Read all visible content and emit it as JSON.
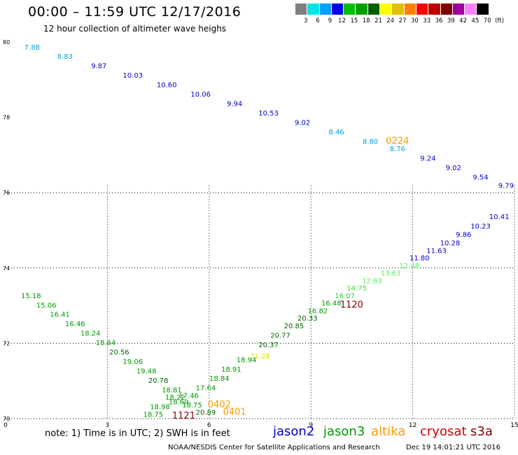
{
  "header": {
    "title": "00:00 – 11:59 UTC 12/17/2016",
    "subtitle": "12 hour collection of altimeter wave heighs"
  },
  "colorbar": {
    "colors": [
      "#808080",
      "#00e5e5",
      "#00a0ff",
      "#0000e0",
      "#00c000",
      "#00a000",
      "#006000",
      "#ffff00",
      "#e0c000",
      "#ff8000",
      "#ff0000",
      "#c00000",
      "#800000",
      "#a000a0",
      "#ff80ff",
      "#000000"
    ],
    "labels": [
      "3",
      "6",
      "9",
      "12",
      "15",
      "18",
      "21",
      "24",
      "27",
      "30",
      "33",
      "36",
      "39",
      "42",
      "45",
      "70",
      "(ft)"
    ]
  },
  "footer": {
    "note": "note: 1) Time is in UTC; 2) SWH is in feet",
    "satellites": [
      {
        "name": "jason2",
        "color": "#0000cc"
      },
      {
        "name": "jason3",
        "color": "#009900"
      },
      {
        "name": "altika",
        "color": "#ff9900"
      },
      {
        "name": "cryosat",
        "color": "#cc0000"
      },
      {
        "name": "s3a",
        "color": "#800000"
      }
    ],
    "credit": "NOAA/NESDIS Center for Satellite Applications and Research",
    "timestamp": "Dec 19 14:01:21 UTC 2016"
  },
  "chart_data": {
    "type": "scatter",
    "xlim": [
      0,
      15
    ],
    "ylim": [
      70,
      80
    ],
    "xticks": [
      "0",
      "3",
      "6",
      "9",
      "12",
      "15"
    ],
    "yticks": [
      "70",
      "72",
      "74",
      "76",
      "78",
      "80"
    ],
    "grid": true,
    "tracks": [
      {
        "name": "jason2 (upper)",
        "points": [
          {
            "x": 0.78,
            "y": 79.8,
            "v": "7.88",
            "c": "#00a0e0"
          },
          {
            "x": 1.75,
            "y": 79.55,
            "v": "8.83",
            "c": "#00a0e0"
          },
          {
            "x": 2.75,
            "y": 79.3,
            "v": "9.87",
            "c": "#0000cc"
          },
          {
            "x": 3.75,
            "y": 79.05,
            "v": "10.03",
            "c": "#0000cc"
          },
          {
            "x": 4.75,
            "y": 78.8,
            "v": "10.60",
            "c": "#0000cc"
          },
          {
            "x": 5.75,
            "y": 78.55,
            "v": "10.06",
            "c": "#0000cc"
          },
          {
            "x": 6.75,
            "y": 78.3,
            "v": "9.94",
            "c": "#0000cc"
          },
          {
            "x": 7.75,
            "y": 78.05,
            "v": "10.53",
            "c": "#0000cc"
          },
          {
            "x": 8.75,
            "y": 77.8,
            "v": "9.02",
            "c": "#0000cc"
          },
          {
            "x": 9.75,
            "y": 77.55,
            "v": "8.46",
            "c": "#00a0e0"
          },
          {
            "x": 10.75,
            "y": 77.3,
            "v": "8.80",
            "c": "#00a0e0"
          },
          {
            "x": 11.55,
            "y": 77.1,
            "v": "8.76",
            "c": "#00a0e0"
          },
          {
            "x": 12.45,
            "y": 76.85,
            "v": "9.24",
            "c": "#0000cc"
          },
          {
            "x": 13.2,
            "y": 76.6,
            "v": "9.02",
            "c": "#0000cc"
          },
          {
            "x": 14.0,
            "y": 76.35,
            "v": "9.54",
            "c": "#0000cc"
          },
          {
            "x": 14.75,
            "y": 76.12,
            "v": "9.79",
            "c": "#0000cc"
          }
        ]
      },
      {
        "name": "jason3 (lower)",
        "points": [
          {
            "x": 0.75,
            "y": 73.2,
            "v": "15.18",
            "c": "#009900"
          },
          {
            "x": 1.2,
            "y": 72.95,
            "v": "15.06",
            "c": "#009900"
          },
          {
            "x": 1.6,
            "y": 72.7,
            "v": "16.41",
            "c": "#009900"
          },
          {
            "x": 2.05,
            "y": 72.45,
            "v": "16.46",
            "c": "#009900"
          },
          {
            "x": 2.5,
            "y": 72.2,
            "v": "18.24",
            "c": "#009900"
          },
          {
            "x": 2.95,
            "y": 71.95,
            "v": "18.64",
            "c": "#009900"
          },
          {
            "x": 3.35,
            "y": 71.7,
            "v": "20.56",
            "c": "#006600"
          },
          {
            "x": 3.75,
            "y": 71.45,
            "v": "19.06",
            "c": "#009900"
          },
          {
            "x": 4.15,
            "y": 71.2,
            "v": "19.48",
            "c": "#009900"
          },
          {
            "x": 4.5,
            "y": 70.95,
            "v": "20.78",
            "c": "#006600"
          },
          {
            "x": 4.9,
            "y": 70.7,
            "v": "18.81",
            "c": "#009900"
          },
          {
            "x": 5.0,
            "y": 70.5,
            "v": "18.22",
            "c": "#009900"
          },
          {
            "x": 5.4,
            "y": 70.55,
            "v": "17.46",
            "c": "#009900"
          },
          {
            "x": 5.1,
            "y": 70.38,
            "v": "18.69",
            "c": "#009900"
          },
          {
            "x": 4.55,
            "y": 70.25,
            "v": "18.98",
            "c": "#009900"
          },
          {
            "x": 4.35,
            "y": 70.05,
            "v": "18.75",
            "c": "#009900"
          },
          {
            "x": 5.5,
            "y": 70.3,
            "v": "18.75",
            "c": "#009900"
          },
          {
            "x": 5.9,
            "y": 70.1,
            "v": "20.89",
            "c": "#006600"
          },
          {
            "x": 5.9,
            "y": 70.75,
            "v": "17.64",
            "c": "#009900"
          },
          {
            "x": 6.3,
            "y": 71.0,
            "v": "18.84",
            "c": "#009900"
          },
          {
            "x": 6.65,
            "y": 71.25,
            "v": "18.91",
            "c": "#009900"
          },
          {
            "x": 7.1,
            "y": 71.5,
            "v": "18.94",
            "c": "#009900"
          },
          {
            "x": 7.5,
            "y": 71.6,
            "v": "21.28",
            "c": "#e0e000"
          },
          {
            "x": 7.75,
            "y": 71.9,
            "v": "20.37",
            "c": "#006600"
          },
          {
            "x": 8.1,
            "y": 72.15,
            "v": "20.77",
            "c": "#006600"
          },
          {
            "x": 8.5,
            "y": 72.4,
            "v": "20.85",
            "c": "#006600"
          },
          {
            "x": 8.9,
            "y": 72.6,
            "v": "20.33",
            "c": "#006600"
          },
          {
            "x": 9.2,
            "y": 72.8,
            "v": "16.82",
            "c": "#009900"
          },
          {
            "x": 9.6,
            "y": 73.0,
            "v": "16.48",
            "c": "#009900"
          },
          {
            "x": 10.0,
            "y": 73.2,
            "v": "16.07",
            "c": "#33cc33"
          },
          {
            "x": 10.35,
            "y": 73.4,
            "v": "14.75",
            "c": "#33dd33"
          },
          {
            "x": 10.8,
            "y": 73.6,
            "v": "12.83",
            "c": "#55ee55"
          },
          {
            "x": 11.35,
            "y": 73.8,
            "v": "13.63",
            "c": "#55ee55"
          },
          {
            "x": 11.9,
            "y": 74.0,
            "v": "12.48",
            "c": "#55ee55"
          },
          {
            "x": 12.2,
            "y": 74.2,
            "v": "11.80",
            "c": "#0000cc"
          },
          {
            "x": 12.7,
            "y": 74.4,
            "v": "11.63",
            "c": "#0000cc"
          },
          {
            "x": 13.1,
            "y": 74.6,
            "v": "10.28",
            "c": "#0000cc"
          },
          {
            "x": 13.5,
            "y": 74.82,
            "v": "9.86",
            "c": "#0000cc"
          },
          {
            "x": 14.0,
            "y": 75.05,
            "v": "10.23",
            "c": "#0000cc"
          },
          {
            "x": 14.55,
            "y": 75.3,
            "v": "10.41",
            "c": "#0000cc"
          }
        ]
      }
    ],
    "pass_labels": [
      {
        "x": 11.55,
        "y": 77.3,
        "text": "0224",
        "c": "#ff9900"
      },
      {
        "x": 10.2,
        "y": 72.95,
        "text": "1120",
        "c": "#800000"
      },
      {
        "x": 6.3,
        "y": 70.3,
        "text": "0402",
        "c": "#ff9900"
      },
      {
        "x": 6.75,
        "y": 70.1,
        "text": "0401",
        "c": "#ff9900"
      },
      {
        "x": 5.25,
        "y": 70.0,
        "text": "1121",
        "c": "#800000"
      }
    ]
  }
}
